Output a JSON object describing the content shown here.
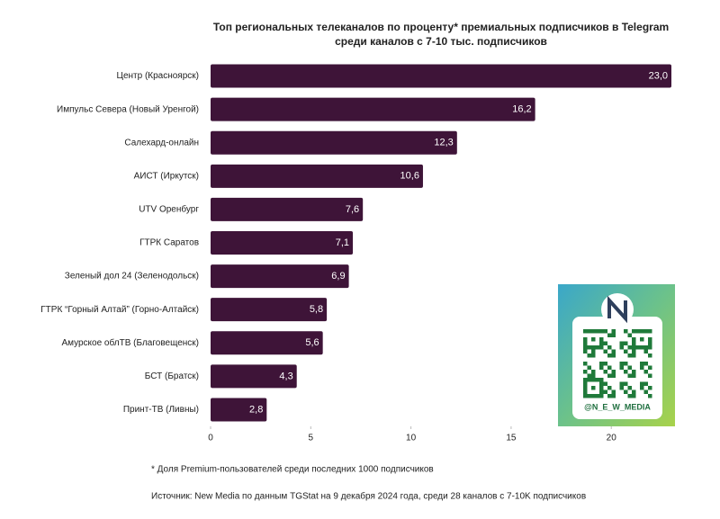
{
  "chart_data": {
    "type": "bar",
    "orientation": "horizontal",
    "title": "Топ региональных телеканалов по проценту* премиальных подписчиков в Telegram",
    "subtitle": "среди каналов с 7-10 тыс. подписчиков",
    "categories": [
      "Центр (Красноярск)",
      "Импульс Севера (Новый Уренгой)",
      "Салехард-онлайн",
      "АИСТ (Иркутск)",
      "UTV Оренбург",
      "ГТРК Саратов",
      "Зеленый дол 24 (Зеленодольск)",
      "ГТРК “Горный Алтай” (Горно-Алтайск)",
      "Амурское облТВ (Благовещенск)",
      "БСТ (Братск)",
      "Принт-ТВ (Ливны)"
    ],
    "values": [
      23.0,
      16.2,
      12.3,
      10.6,
      7.6,
      7.1,
      6.9,
      5.8,
      5.6,
      4.3,
      2.8
    ],
    "value_labels": [
      "23,0",
      "16,2",
      "12,3",
      "10,6",
      "7,6",
      "7,1",
      "6,9",
      "5,8",
      "5,6",
      "4,3",
      "2,8"
    ],
    "color": "#3e1438",
    "xlim": [
      0,
      23
    ],
    "xticks": [
      0,
      5,
      10,
      15,
      20
    ],
    "badge": "@N_E_W_MEDIA",
    "footnote": "*  Доля Premium-пользователей среди последних 1000 подписчиков",
    "source": "Источник: New Media по данным TGStat на 9 декабря 2024 года, среди 28 каналов с 7-10K подписчиков"
  }
}
